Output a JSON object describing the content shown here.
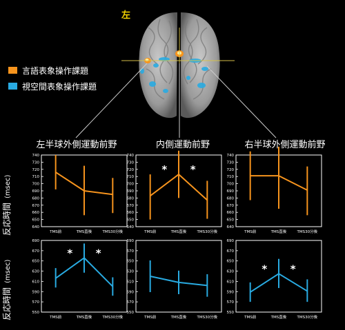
{
  "brain_label": "左",
  "legend": [
    {
      "label": "言語表象操作課題",
      "color": "#f7941d"
    },
    {
      "label": "視空間表象操作課題",
      "color": "#29abe2"
    }
  ],
  "column_titles": [
    "左半球外側運動前野",
    "内側運動前野",
    "右半球外側運動前野"
  ],
  "y_axis_label": "反応時間",
  "y_axis_unit": "(msec)",
  "chart_data": [
    {
      "type": "line",
      "region": "左半球外側運動前野",
      "task": "言語表象操作課題",
      "categories": [
        "TMS前",
        "TMS直後",
        "TMS30分後"
      ],
      "values": [
        716,
        690,
        685
      ],
      "err": [
        [
          692,
          740
        ],
        [
          656,
          725
        ],
        [
          659,
          708
        ]
      ],
      "ylim": [
        640,
        740
      ],
      "yticks": [
        640,
        650,
        660,
        670,
        680,
        690,
        700,
        710,
        720,
        730,
        740
      ],
      "significance": []
    },
    {
      "type": "line",
      "region": "内側運動前野",
      "task": "言語表象操作課題",
      "categories": [
        "TMS前",
        "TMS直後",
        "TMS30分後"
      ],
      "values": [
        683,
        713,
        677
      ],
      "err": [
        [
          650,
          713
        ],
        [
          680,
          746
        ],
        [
          651,
          704
        ]
      ],
      "ylim": [
        640,
        740
      ],
      "yticks": [
        640,
        650,
        660,
        670,
        680,
        690,
        700,
        710,
        720,
        730,
        740
      ],
      "significance": [
        "*",
        "*"
      ]
    },
    {
      "type": "line",
      "region": "右半球外側運動前野",
      "task": "言語表象操作課題",
      "categories": [
        "TMS前",
        "TMS直後",
        "TMS30分後"
      ],
      "values": [
        711,
        711,
        691
      ],
      "err": [
        [
          677,
          745
        ],
        [
          665,
          758
        ],
        [
          656,
          724
        ]
      ],
      "ylim": [
        640,
        740
      ],
      "yticks": [
        640,
        650,
        660,
        670,
        680,
        690,
        700,
        710,
        720,
        730,
        740
      ],
      "significance": []
    },
    {
      "type": "line",
      "region": "左半球外側運動前野",
      "task": "視空間表象操作課題",
      "categories": [
        "TMS前",
        "TMS直後",
        "TMS30分後"
      ],
      "values": [
        616,
        656,
        600
      ],
      "err": [
        [
          598,
          636
        ],
        [
          627,
          684
        ],
        [
          582,
          618
        ]
      ],
      "ylim": [
        550,
        690
      ],
      "yticks": [
        550,
        570,
        590,
        610,
        630,
        650,
        670,
        690
      ],
      "significance": [
        "*",
        "*"
      ]
    },
    {
      "type": "line",
      "region": "内側運動前野",
      "task": "視空間表象操作課題",
      "categories": [
        "TMS前",
        "TMS直後",
        "TMS30分後"
      ],
      "values": [
        620,
        608,
        602
      ],
      "err": [
        [
          589,
          651
        ],
        [
          585,
          631
        ],
        [
          580,
          624
        ]
      ],
      "ylim": [
        550,
        690
      ],
      "yticks": [
        550,
        570,
        590,
        610,
        630,
        650,
        670,
        690
      ],
      "significance": []
    },
    {
      "type": "line",
      "region": "右半球外側運動前野",
      "task": "視空間表象操作課題",
      "categories": [
        "TMS前",
        "TMS直後",
        "TMS30分後"
      ],
      "values": [
        589,
        625,
        591
      ],
      "err": [
        [
          570,
          608
        ],
        [
          597,
          654
        ],
        [
          570,
          614
        ]
      ],
      "ylim": [
        550,
        690
      ],
      "yticks": [
        550,
        570,
        590,
        610,
        630,
        650,
        670,
        690
      ],
      "significance": [
        "*",
        "*"
      ]
    }
  ]
}
